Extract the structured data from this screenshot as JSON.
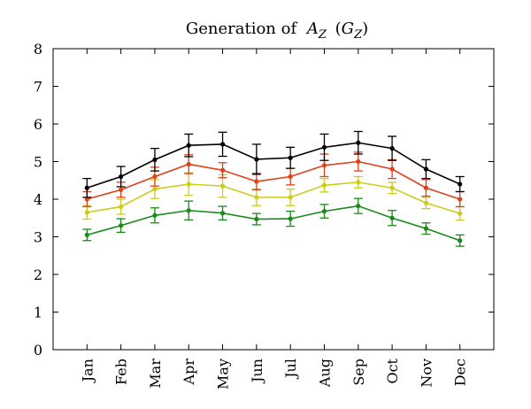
{
  "chart_data": {
    "type": "line",
    "title": "Generation of",
    "title_math": {
      "main": "A",
      "main_sub": "Z",
      "paren": "G",
      "paren_sub": "Z"
    },
    "xlabel": "",
    "ylabel": "",
    "categories": [
      "Jan",
      "Feb",
      "Mar",
      "Apr",
      "May",
      "Jun",
      "Jul",
      "Aug",
      "Sep",
      "Oct",
      "Nov",
      "Dec"
    ],
    "ylim": [
      0,
      8
    ],
    "yticks": [
      "0",
      "1",
      "2",
      "3",
      "4",
      "5",
      "6",
      "7",
      "8"
    ],
    "grid": false,
    "legend": "none",
    "series": [
      {
        "color": "#000000",
        "values": [
          4.3,
          4.6,
          5.05,
          5.43,
          5.46,
          5.06,
          5.1,
          5.38,
          5.5,
          5.35,
          4.8,
          4.4
        ],
        "errors": [
          0.25,
          0.27,
          0.3,
          0.3,
          0.32,
          0.4,
          0.28,
          0.35,
          0.3,
          0.32,
          0.25,
          0.2
        ]
      },
      {
        "color": "#e0401a",
        "values": [
          4.0,
          4.25,
          4.6,
          4.93,
          4.77,
          4.47,
          4.6,
          4.9,
          5.0,
          4.8,
          4.3,
          4.0
        ],
        "errors": [
          0.2,
          0.2,
          0.25,
          0.25,
          0.2,
          0.22,
          0.22,
          0.3,
          0.25,
          0.25,
          0.22,
          0.2
        ]
      },
      {
        "color": "#cccc1a",
        "values": [
          3.65,
          3.8,
          4.27,
          4.4,
          4.35,
          4.05,
          4.05,
          4.37,
          4.45,
          4.3,
          3.9,
          3.62
        ],
        "errors": [
          0.18,
          0.2,
          0.25,
          0.3,
          0.3,
          0.22,
          0.22,
          0.18,
          0.15,
          0.15,
          0.15,
          0.18
        ]
      },
      {
        "color": "#1a8a1a",
        "values": [
          3.05,
          3.3,
          3.57,
          3.7,
          3.63,
          3.47,
          3.48,
          3.68,
          3.82,
          3.5,
          3.22,
          2.9
        ],
        "errors": [
          0.15,
          0.18,
          0.2,
          0.25,
          0.18,
          0.15,
          0.2,
          0.18,
          0.2,
          0.2,
          0.15,
          0.15
        ]
      }
    ]
  }
}
